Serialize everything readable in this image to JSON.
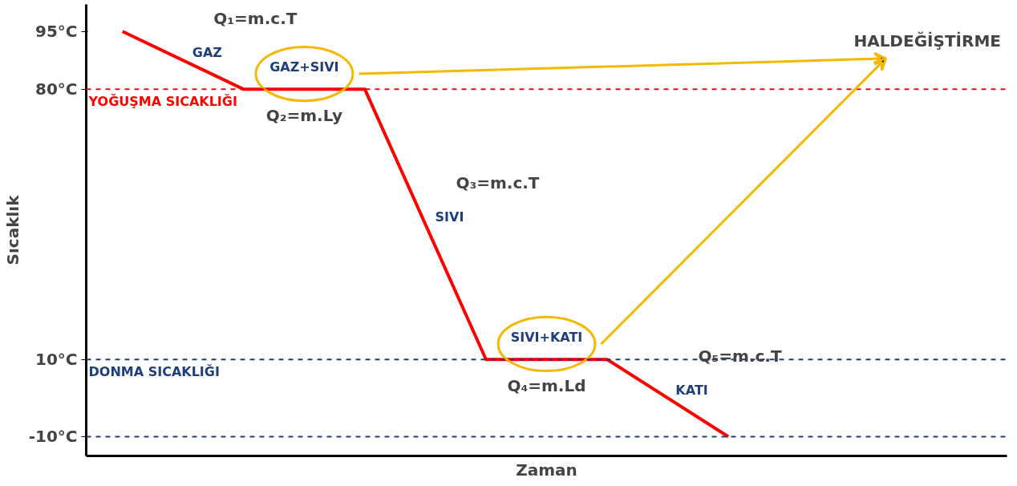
{
  "chart_data": {
    "type": "line",
    "xlabel": "Zaman",
    "ylabel": "Sıcaklık",
    "categories": [
      null,
      null,
      null,
      null,
      null,
      null
    ],
    "series": [
      {
        "color": "#ff0000",
        "values": [
          95,
          80,
          80,
          10,
          10,
          -10
        ]
      }
    ],
    "ylim": [
      -15,
      102
    ],
    "yticks": [
      {
        "value": 95,
        "label": "95°C"
      },
      {
        "value": 80,
        "label": "80°C"
      },
      {
        "value": 10,
        "label": "10°C"
      },
      {
        "value": -10,
        "label": "-10°C"
      }
    ],
    "ref_lines": [
      {
        "axis": "y",
        "value": 80,
        "label": "YOĞUŞMA SICAKLIĞI",
        "color": "#ff0000",
        "line_style": "dashed"
      },
      {
        "axis": "y",
        "value": 10,
        "label": "DONMA SICAKLIĞI",
        "color": "#1f3f7a",
        "line_style": "dashed"
      },
      {
        "axis": "y",
        "value": -10,
        "line_style": "dashed"
      }
    ],
    "annotations": [
      "GAZ",
      "GAZ+SIVI",
      "SIVI",
      "SIVI+KATI",
      "KATI",
      "Q₁=m.c.T",
      "Q₂=m.Ly",
      "Q₃=m.c.T",
      "Q₄=m.Ld",
      "Q₅=m.c.T",
      "HALDEĞİŞTİRME"
    ],
    "grid": false,
    "marker": "none",
    "line_style": "solid"
  }
}
